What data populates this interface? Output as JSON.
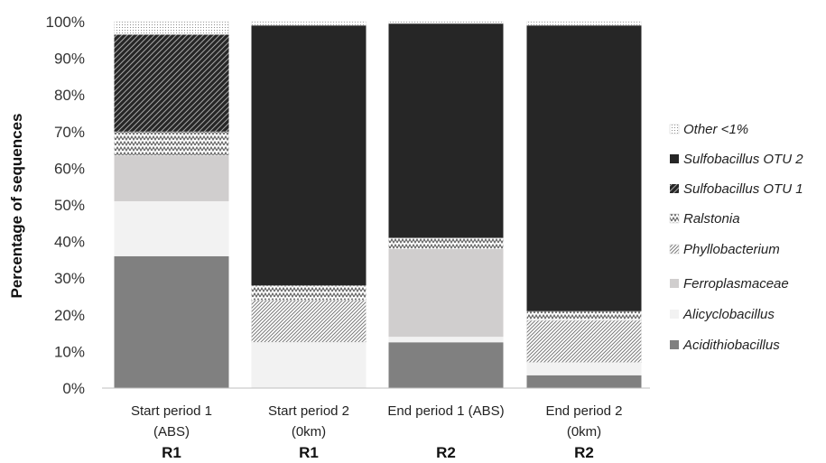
{
  "chart_data": {
    "type": "bar",
    "stacked": true,
    "ylabel": "Percentage of sequences",
    "ylim": [
      0,
      100
    ],
    "yticks": [
      "0%",
      "10%",
      "20%",
      "30%",
      "40%",
      "50%",
      "60%",
      "70%",
      "80%",
      "90%",
      "100%"
    ],
    "categories": [
      {
        "line1": "Start period 1",
        "line2": "(ABS)",
        "group": "R1"
      },
      {
        "line1": "Start period 2",
        "line2": "(0km)",
        "group": "R1"
      },
      {
        "line1": "End period 1 (ABS)",
        "line2": "",
        "group": "R2"
      },
      {
        "line1": "End period 2",
        "line2": "(0km)",
        "group": "R2"
      }
    ],
    "legend_position": "right",
    "series": [
      {
        "name": "Acidithiobacillus",
        "color": "#808080",
        "pattern": "solid",
        "values": [
          36,
          0,
          12.5,
          3.5
        ]
      },
      {
        "name": "Alicyclobacillus",
        "color": "#f2f2f2",
        "pattern": "solid",
        "values": [
          15,
          12.5,
          1.5,
          3.5
        ]
      },
      {
        "name": "Ferroplasmaceae",
        "color": "#d0cece",
        "pattern": "solid",
        "values": [
          12.5,
          0,
          24,
          0
        ]
      },
      {
        "name": "Phyllobacterium",
        "color": "#ffffff",
        "pattern": "fine-diagonal",
        "values": [
          0,
          11.5,
          0,
          11.5
        ]
      },
      {
        "name": "Ralstonia",
        "color": "#ffffff",
        "pattern": "zigzag",
        "values": [
          6.5,
          4,
          3,
          2.5
        ]
      },
      {
        "name": "Sulfobacillus OTU 1",
        "color": "#262626",
        "pattern": "dark-diagonal",
        "values": [
          26.5,
          0,
          0,
          0
        ]
      },
      {
        "name": "Sulfobacillus OTU 2",
        "color": "#262626",
        "pattern": "solid",
        "values": [
          0,
          71,
          58.5,
          78
        ]
      },
      {
        "name": "Other <1%",
        "color": "#ffffff",
        "pattern": "dots",
        "values": [
          3.5,
          1,
          0.5,
          1
        ]
      }
    ]
  }
}
